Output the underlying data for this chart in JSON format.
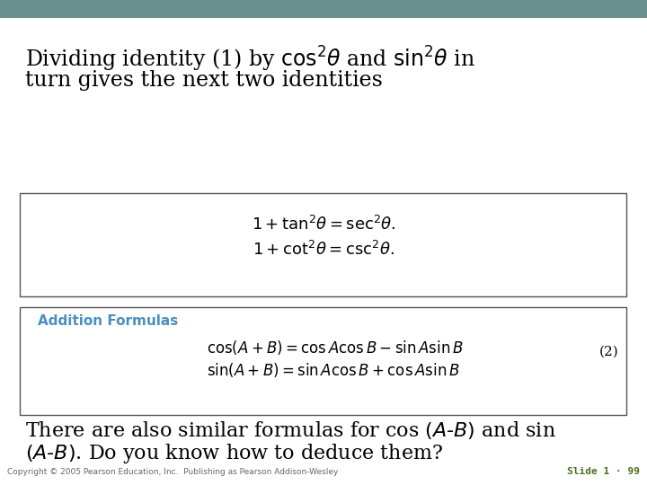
{
  "header_color": "#6b8e8e",
  "white_bg": "#ffffff",
  "title_line1": "Dividing identity (1) by $\\cos^2\\!\\theta$ and $\\sin^2\\!\\theta$ in",
  "title_line2": "turn gives the next two identities",
  "box1_eq1": "$1 + \\tan^2\\!\\theta = \\sec^2\\!\\theta.$",
  "box1_eq2": "$1 + \\cot^2\\!\\theta = \\csc^2\\!\\theta.$",
  "box2_label": "Addition Formulas",
  "box2_label_color": "#4a8fbf",
  "box2_eq1": "$\\cos(A + B) = \\cos A\\cos B - \\sin A\\sin B$",
  "box2_eq2": "$\\sin(A + B) = \\sin A\\cos B + \\cos A\\sin B$",
  "box2_num": "(2)",
  "footer_line1": "There are also similar formulas for cos $(A\\text{-}B)$ and sin",
  "footer_line2": "$(A\\text{-}B)$. Do you know how to deduce them?",
  "copyright": "Copyright © 2005 Pearson Education, Inc.  Publishing as Pearson Addison-Wesley",
  "slide_num": "Slide 1 · 99",
  "slide_num_color": "#4a6e1a"
}
